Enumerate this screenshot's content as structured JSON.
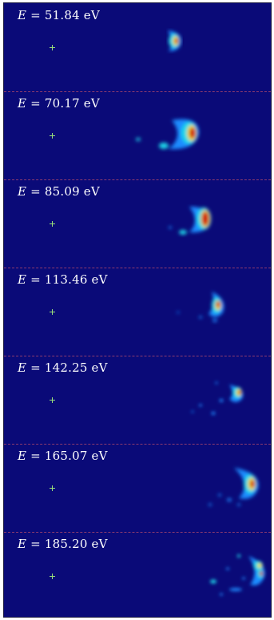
{
  "panels": [
    {
      "label_var": "E",
      "label_eq": " = ",
      "label_value": "51.84 eV"
    },
    {
      "label_var": "E",
      "label_eq": " = ",
      "label_value": "70.17 eV"
    },
    {
      "label_var": "E",
      "label_eq": " = ",
      "label_value": "85.09 eV"
    },
    {
      "label_var": "E",
      "label_eq": " = ",
      "label_value": "113.46 eV"
    },
    {
      "label_var": "E",
      "label_eq": " = ",
      "label_value": "142.25 eV"
    },
    {
      "label_var": "E",
      "label_eq": " = ",
      "label_value": "165.07 eV"
    },
    {
      "label_var": "E",
      "label_eq": " = ",
      "label_value": "185.20 eV"
    }
  ],
  "colors": {
    "background": "#0a0a78",
    "marker": "#9be07a",
    "divider": "#b84a6a",
    "label": "#ffffff"
  }
}
